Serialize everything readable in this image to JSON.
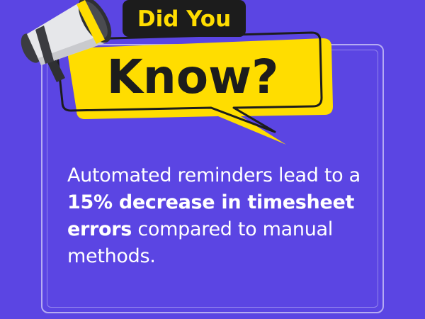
{
  "headline": {
    "line1": "Did You",
    "line2": "Know?"
  },
  "fact": {
    "lead": "Automated reminders lead to a",
    "highlight": "15% decrease in timesheet errors",
    "tail": "compared to manual methods."
  },
  "colors": {
    "background": "#5b45e3",
    "accent": "#ffdd00",
    "dark": "#1c1c1c",
    "text": "#ffffff"
  },
  "icons": [
    "megaphone-icon",
    "speech-bubble-icon"
  ]
}
